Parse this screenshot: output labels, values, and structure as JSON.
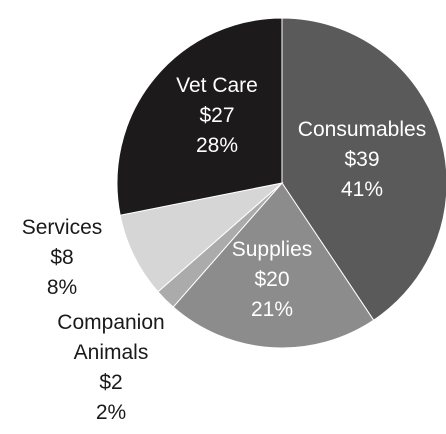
{
  "chart_data": {
    "type": "pie",
    "title": "",
    "unit": "$",
    "slices": [
      {
        "name": "Consumables",
        "value": 39,
        "value_label": "$39",
        "percent": 41,
        "percent_label": "41%",
        "color": "#5a5a5a",
        "text_color": "#ffffff",
        "label_position": "inside"
      },
      {
        "name": "Supplies",
        "value": 20,
        "value_label": "$20",
        "percent": 21,
        "percent_label": "21%",
        "color": "#8c8c8c",
        "text_color": "#ffffff",
        "label_position": "inside"
      },
      {
        "name": "Companion Animals",
        "value": 2,
        "value_label": "$2",
        "percent": 2,
        "percent_label": "2%",
        "color": "#ababab",
        "text_color": "#1a1a1a",
        "label_position": "outside"
      },
      {
        "name": "Services",
        "value": 8,
        "value_label": "$8",
        "percent": 8,
        "percent_label": "8%",
        "color": "#d6d6d6",
        "text_color": "#1a1a1a",
        "label_position": "outside"
      },
      {
        "name": "Vet Care",
        "value": 27,
        "value_label": "$27",
        "percent": 28,
        "percent_label": "28%",
        "color": "#1c1a1b",
        "text_color": "#ffffff",
        "label_position": "inside"
      }
    ],
    "legend": "none",
    "grid": false
  }
}
